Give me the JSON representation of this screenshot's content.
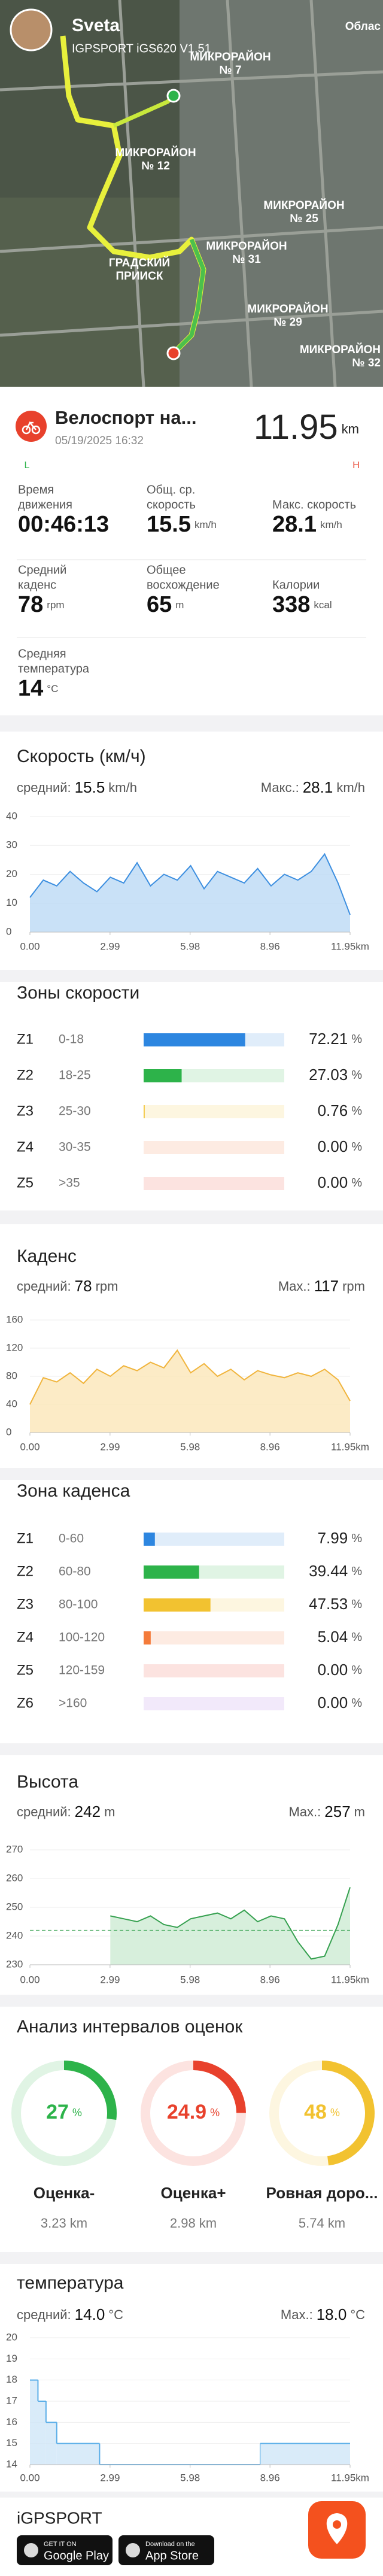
{
  "map": {
    "user": "Sveta",
    "device": "IGPSPORT iGS620 V1.51",
    "labels": [
      [
        "Облас"
      ],
      [
        "МИКРОРАЙОН",
        "№ 7"
      ],
      [
        "МИКРОРАЙОН",
        "№ 12"
      ],
      [
        "МИКРОРАЙОН",
        "№ 25"
      ],
      [
        "МИКРОРАЙОН",
        "№ 31"
      ],
      [
        "ГРАДСКИЙ",
        "ПРИИСК"
      ],
      [
        "МИКРОРАЙОН",
        "№ 29"
      ],
      [
        "МИКРОРАЙОН",
        "№ 32"
      ]
    ]
  },
  "activity": {
    "name": "Велоспорт на...",
    "date": "05/19/2025 16:32",
    "distance": 11.95,
    "distance_unit": "km",
    "scale_low": "L",
    "scale_high": "H"
  },
  "stats": [
    {
      "label": [
        "Время",
        "движения"
      ],
      "value": "00:46:13"
    },
    {
      "label": [
        "Общ. ср.",
        "скорость"
      ],
      "value": 15.5,
      "unit": "km/h"
    },
    {
      "label": [
        "Макс. скорость"
      ],
      "value": 28.1,
      "unit": "km/h"
    },
    {
      "label": [
        "Средний",
        "каденс"
      ],
      "value": 78,
      "unit": "rpm"
    },
    {
      "label": [
        "Общее",
        "восхождение"
      ],
      "value": 65,
      "unit": "m"
    },
    {
      "label": [
        "Калории"
      ],
      "value": 338,
      "unit": "kcal"
    },
    {
      "label": [
        "Средняя",
        "температура"
      ],
      "value": 14,
      "unit": "°C"
    }
  ],
  "chart_data": [
    {
      "type": "area",
      "title": "Скорость (км/ч)",
      "avg_label": "средний:",
      "avg": 15.5,
      "max_label": "Макс.:",
      "max": 28.1,
      "unit": "km/h",
      "color": "#3d8fe0",
      "fill": "#bcdaf5",
      "x": [
        0,
        0.5,
        1,
        1.5,
        2,
        2.5,
        3,
        3.5,
        4,
        4.5,
        5,
        5.5,
        6,
        6.5,
        7,
        7.5,
        8,
        8.5,
        9,
        9.5,
        10,
        10.5,
        11,
        11.5,
        11.95
      ],
      "values": [
        12,
        18,
        16,
        21,
        17,
        14,
        19,
        17,
        24,
        16,
        20,
        18,
        23,
        15,
        21,
        19,
        17,
        22,
        16,
        20,
        18,
        21,
        27,
        17,
        6
      ],
      "xlim": [
        0,
        11.95
      ],
      "xticks": [
        {
          "value": 0,
          "label": "0.00"
        },
        2.99,
        5.98,
        8.96,
        {
          "value": 11.95,
          "label": "11.95km"
        }
      ],
      "ylim": [
        0,
        40
      ],
      "yticks": [
        0,
        10,
        20,
        30,
        40
      ],
      "grid": true
    },
    {
      "type": "area",
      "title": "Каденс",
      "avg_label": "средний:",
      "avg": 78,
      "max_label": "Max.:",
      "max": 117,
      "unit": "rpm",
      "color": "#f0b43c",
      "fill": "#fbe6b8",
      "x": [
        0,
        0.5,
        1,
        1.5,
        2,
        2.5,
        3,
        3.5,
        4,
        4.5,
        5,
        5.5,
        6,
        6.5,
        7,
        7.5,
        8,
        8.5,
        9,
        9.5,
        10,
        10.5,
        11,
        11.5,
        11.95
      ],
      "values": [
        40,
        78,
        72,
        85,
        70,
        90,
        80,
        95,
        88,
        100,
        92,
        117,
        85,
        98,
        80,
        90,
        75,
        88,
        82,
        78,
        85,
        80,
        90,
        75,
        45
      ],
      "xlim": [
        0,
        11.95
      ],
      "xticks": [
        {
          "value": 0,
          "label": "0.00"
        },
        2.99,
        5.98,
        8.96,
        {
          "value": 11.95,
          "label": "11.95km"
        }
      ],
      "ylim": [
        0,
        160
      ],
      "yticks": [
        0,
        40,
        80,
        120,
        160
      ],
      "grid": true
    },
    {
      "type": "area",
      "title": "Высота",
      "avg_label": "средний:",
      "avg": 242,
      "max_label": "Max.:",
      "max": 257,
      "unit": "m",
      "color": "#35a04f",
      "fill": "#cdebd3",
      "avg_line": true,
      "x": [
        3,
        3.5,
        4,
        4.5,
        5,
        5.5,
        6,
        6.5,
        7,
        7.5,
        8,
        8.5,
        9,
        9.5,
        10,
        10.5,
        11,
        11.5,
        11.95
      ],
      "values": [
        247,
        246,
        245,
        247,
        244,
        243,
        246,
        247,
        248,
        246,
        249,
        245,
        247,
        246,
        238,
        232,
        233,
        244,
        257
      ],
      "xlim": [
        0,
        11.95
      ],
      "xticks": [
        {
          "value": 0,
          "label": "0.00"
        },
        2.99,
        5.98,
        8.96,
        {
          "value": 11.95,
          "label": "11.95km"
        }
      ],
      "ylim": [
        230,
        270
      ],
      "yticks": [
        230,
        240,
        250,
        260,
        270
      ],
      "grid": true
    },
    {
      "type": "step",
      "title": "температура",
      "avg_label": "средний:",
      "avg": 14.0,
      "avg_label_text": "14.0",
      "max_label": "Max.:",
      "max": 18.0,
      "max_label_text": "18.0",
      "unit": "°C",
      "color": "#5aaee8",
      "fill": "#cfe6f8",
      "x": [
        0,
        0.3,
        0.6,
        1,
        2.6,
        8.6
      ],
      "values": [
        18,
        17,
        16,
        15,
        14,
        15
      ],
      "xlim": [
        0,
        11.95
      ],
      "xticks": [
        {
          "value": 0,
          "label": "0.00"
        },
        2.99,
        5.98,
        8.96,
        {
          "value": 11.95,
          "label": "11.95km"
        }
      ],
      "ylim": [
        14,
        20
      ],
      "yticks": [
        14,
        15,
        16,
        17,
        18,
        19,
        20
      ],
      "grid": true
    }
  ],
  "speed_zones": {
    "title": "Зоны скорости",
    "zones": [
      "Z1",
      "Z2",
      "Z3",
      "Z4",
      "Z5"
    ],
    "ranges": [
      "0-18",
      "18-25",
      "25-30",
      "30-35",
      ">35"
    ],
    "values": [
      72.21,
      27.03,
      0.76,
      0,
      0
    ],
    "value_labels": [
      "72.21",
      "27.03",
      "0.76",
      "0.00",
      "0.00"
    ],
    "unit": "%",
    "colors": [
      "#2d86e0",
      "#2db34a",
      "#f2c230",
      "#f47b3a",
      "#e8412c"
    ]
  },
  "cadence_zones": {
    "title": "Зона каденса",
    "zones": [
      "Z1",
      "Z2",
      "Z3",
      "Z4",
      "Z5",
      "Z6"
    ],
    "ranges": [
      "0-60",
      "60-80",
      "80-100",
      "100-120",
      "120-159",
      ">160"
    ],
    "values": [
      7.99,
      39.44,
      47.53,
      5.04,
      0,
      0
    ],
    "value_labels": [
      "7.99",
      "39.44",
      "47.53",
      "5.04",
      "0.00",
      "0.00"
    ],
    "unit": "%",
    "colors": [
      "#2d86e0",
      "#2db34a",
      "#f2c230",
      "#f47b3a",
      "#e8412c",
      "#a66ee0"
    ]
  },
  "rating": {
    "title": "Анализ интервалов оценок",
    "pct_unit": "%",
    "dist_unit": "km",
    "items": [
      {
        "name": "Оценка-",
        "pct": 27,
        "distance": 3.23,
        "color": "#2db34a"
      },
      {
        "name": "Оценка+",
        "pct": 24.9,
        "distance": 2.98,
        "color": "#e8412c"
      },
      {
        "name": "Ровная доро...",
        "pct": 48,
        "distance": 5.74,
        "color": "#f2c230"
      }
    ]
  },
  "footer": {
    "brand": "iGPSPORT",
    "google": [
      "GET IT ON",
      "Google Play"
    ],
    "apple": [
      "Download on the",
      "App Store"
    ]
  }
}
